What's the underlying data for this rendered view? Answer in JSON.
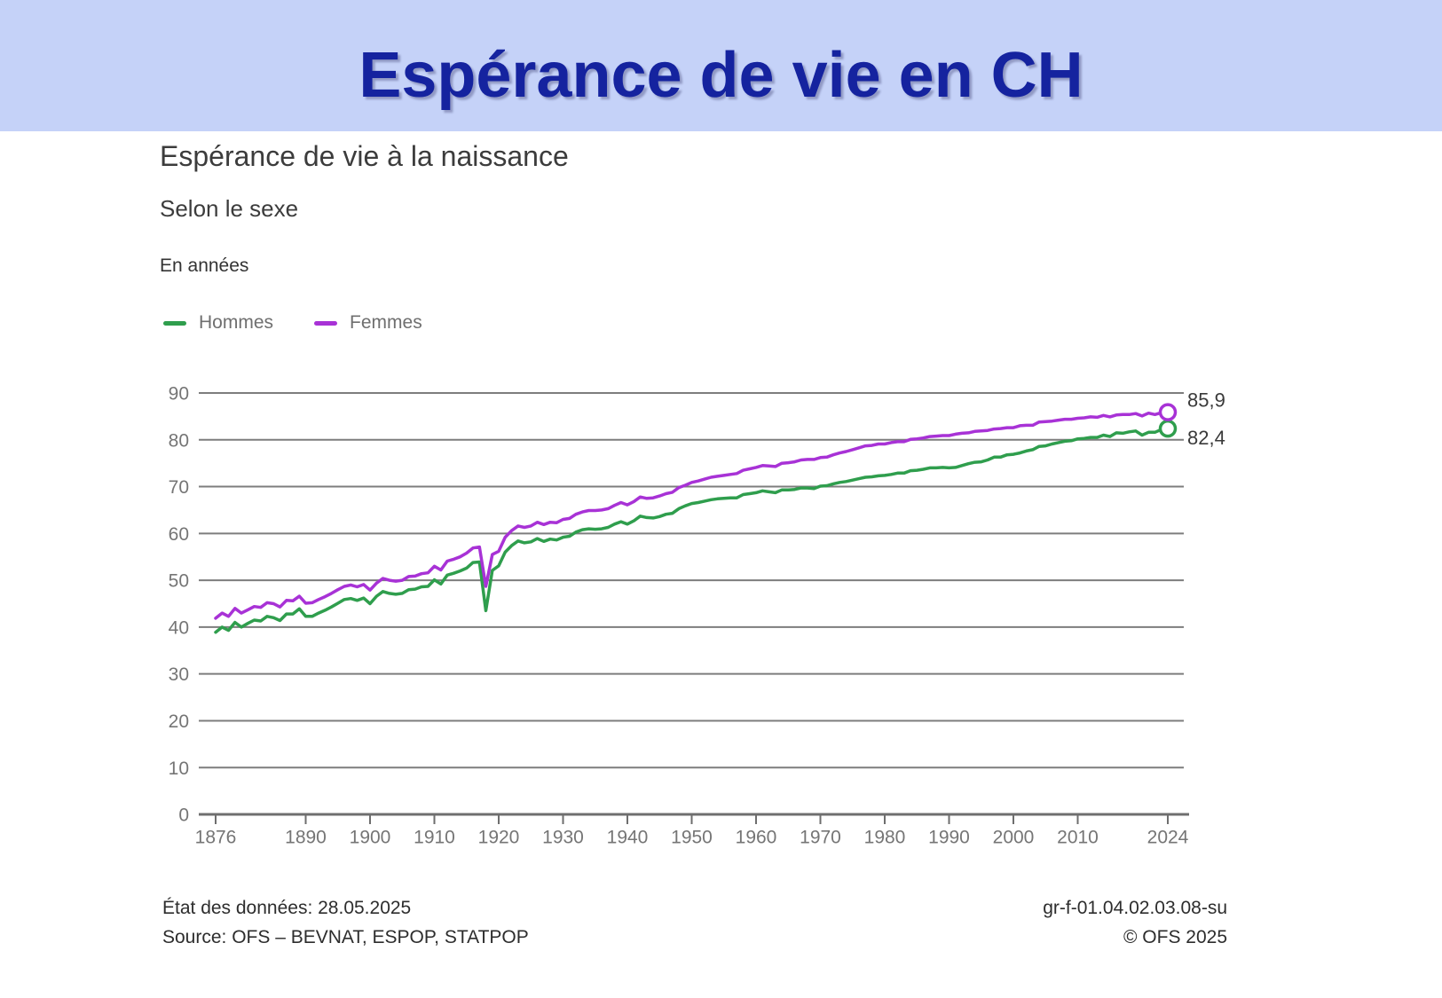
{
  "header": {
    "title": "Espérance de vie en CH"
  },
  "colors": {
    "header_bg": "#c5d2f8",
    "header_title": "#15239f",
    "hommes": "#2f9e4d",
    "femmes": "#a832d6",
    "grid": "#7d7d7d",
    "axis": "#6e6e6e",
    "axis_text": "#757575",
    "end_label_text": "#3a3a3a"
  },
  "footer": {
    "data_state": "État des données: 28.05.2025",
    "source": "Source: OFS – BEVNAT, ESPOP, STATPOP",
    "reference": "gr-f-01.04.02.03.08-su",
    "copyright": "© OFS 2025"
  },
  "chart_data": {
    "type": "line",
    "title": "Espérance de vie à la naissance",
    "subtitle": "Selon le sexe",
    "unit": "En années",
    "xlabel": "",
    "ylabel": "En années",
    "xlim": [
      1876,
      2024
    ],
    "ylim": [
      0,
      90
    ],
    "x_start": 1876,
    "x_step": 1,
    "x_ticks": [
      1876,
      1890,
      1900,
      1910,
      1920,
      1930,
      1940,
      1950,
      1960,
      1970,
      1980,
      1990,
      2000,
      2010,
      2024
    ],
    "y_ticks": [
      0,
      10,
      20,
      30,
      40,
      50,
      60,
      70,
      80,
      90
    ],
    "grid": true,
    "legend_position": "top-left",
    "series": [
      {
        "name": "Hommes",
        "color": "#2f9e4d",
        "end_label": "82,4",
        "end_value": 82.4,
        "values": [
          38.9,
          40.0,
          39.3,
          41.0,
          40.0,
          40.8,
          41.5,
          41.3,
          42.3,
          42.0,
          41.4,
          42.8,
          42.8,
          43.9,
          42.3,
          42.3,
          43.0,
          43.6,
          44.3,
          45.1,
          45.9,
          46.1,
          45.7,
          46.2,
          45.0,
          46.6,
          47.6,
          47.2,
          47.0,
          47.2,
          48.0,
          48.1,
          48.6,
          48.7,
          50.1,
          49.2,
          51.1,
          51.5,
          52.0,
          52.6,
          53.8,
          53.9,
          43.5,
          52.1,
          53.1,
          56.0,
          57.4,
          58.4,
          58.0,
          58.2,
          58.9,
          58.3,
          58.8,
          58.6,
          59.2,
          59.4,
          60.3,
          60.8,
          61.0,
          60.9,
          61.0,
          61.3,
          62.0,
          62.5,
          62.0,
          62.7,
          63.7,
          63.4,
          63.3,
          63.6,
          64.1,
          64.3,
          65.3,
          65.9,
          66.4,
          66.6,
          66.9,
          67.2,
          67.4,
          67.5,
          67.6,
          67.6,
          68.3,
          68.5,
          68.7,
          69.1,
          68.9,
          68.7,
          69.3,
          69.3,
          69.4,
          69.7,
          69.7,
          69.6,
          70.1,
          70.2,
          70.6,
          70.9,
          71.1,
          71.4,
          71.7,
          72.0,
          72.1,
          72.3,
          72.4,
          72.6,
          72.9,
          72.9,
          73.4,
          73.5,
          73.7,
          74.0,
          74.0,
          74.1,
          74.0,
          74.1,
          74.5,
          74.9,
          75.2,
          75.3,
          75.7,
          76.3,
          76.3,
          76.8,
          76.9,
          77.2,
          77.6,
          77.9,
          78.6,
          78.7,
          79.1,
          79.4,
          79.7,
          79.8,
          80.2,
          80.3,
          80.5,
          80.5,
          81.0,
          80.7,
          81.5,
          81.4,
          81.7,
          81.9,
          81.0,
          81.6,
          81.6,
          82.2,
          82.4
        ]
      },
      {
        "name": "Femmes",
        "color": "#a832d6",
        "end_label": "85,9",
        "end_value": 85.9,
        "values": [
          41.9,
          43.0,
          42.3,
          44.0,
          43.0,
          43.7,
          44.4,
          44.2,
          45.2,
          45.0,
          44.3,
          45.7,
          45.6,
          46.6,
          45.1,
          45.2,
          45.9,
          46.5,
          47.2,
          48.0,
          48.7,
          49.0,
          48.6,
          49.1,
          47.9,
          49.4,
          50.4,
          50.0,
          49.8,
          50.0,
          50.8,
          50.9,
          51.4,
          51.6,
          53.0,
          52.2,
          54.1,
          54.5,
          55.0,
          55.8,
          56.9,
          57.1,
          48.7,
          55.5,
          56.2,
          59.2,
          60.6,
          61.6,
          61.3,
          61.6,
          62.4,
          61.9,
          62.4,
          62.3,
          63.0,
          63.2,
          64.1,
          64.6,
          64.9,
          64.9,
          65.0,
          65.3,
          66.0,
          66.6,
          66.1,
          66.8,
          67.8,
          67.5,
          67.6,
          68.0,
          68.5,
          68.8,
          69.8,
          70.3,
          70.9,
          71.2,
          71.6,
          72.0,
          72.2,
          72.4,
          72.6,
          72.8,
          73.5,
          73.8,
          74.1,
          74.5,
          74.4,
          74.3,
          75.0,
          75.1,
          75.3,
          75.7,
          75.8,
          75.8,
          76.2,
          76.3,
          76.8,
          77.2,
          77.5,
          77.9,
          78.3,
          78.7,
          78.8,
          79.1,
          79.1,
          79.4,
          79.6,
          79.6,
          80.1,
          80.2,
          80.4,
          80.7,
          80.8,
          80.9,
          80.9,
          81.2,
          81.4,
          81.5,
          81.8,
          81.9,
          82.0,
          82.3,
          82.4,
          82.6,
          82.6,
          83.0,
          83.1,
          83.1,
          83.8,
          83.9,
          84.0,
          84.2,
          84.4,
          84.4,
          84.6,
          84.7,
          84.9,
          84.8,
          85.2,
          84.9,
          85.3,
          85.4,
          85.4,
          85.6,
          85.1,
          85.7,
          85.4,
          85.8,
          85.9
        ]
      }
    ]
  }
}
